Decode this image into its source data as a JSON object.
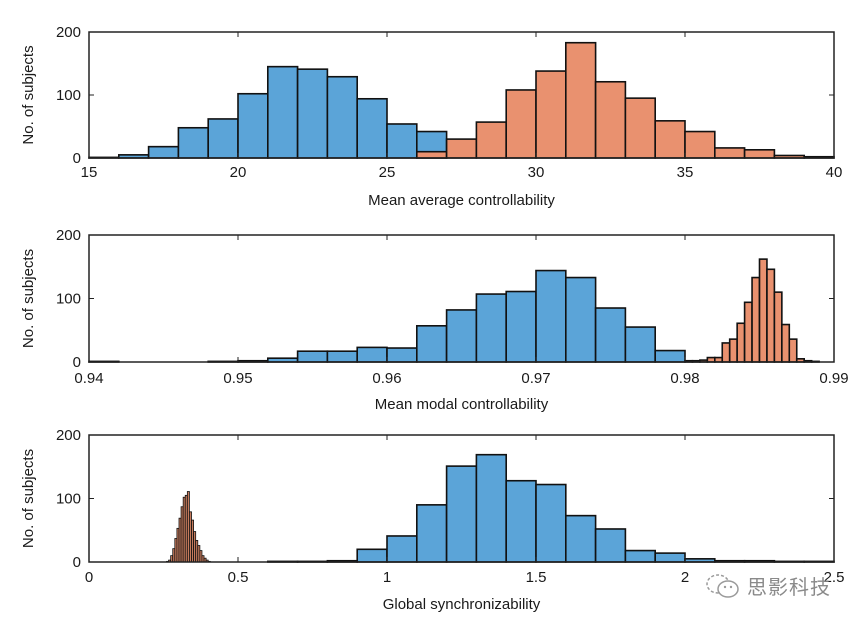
{
  "colors": {
    "blue": "#5BA4D8",
    "orange": "#E9916F",
    "orange_dark": "#C57A5C",
    "edge": "#111111",
    "axis": "#222222"
  },
  "watermark": {
    "text": "思影科技",
    "icon": "wechat-icon"
  },
  "chart_data": [
    {
      "type": "bar",
      "title": "",
      "xlabel": "Mean average controllability",
      "ylabel": "No. of subjects",
      "xlim": [
        15,
        40
      ],
      "ylim": [
        0,
        200
      ],
      "xticks": [
        15,
        20,
        25,
        30,
        35,
        40
      ],
      "xtick_labels": [
        "15",
        "20",
        "25",
        "30",
        "35",
        "40"
      ],
      "yticks": [
        0,
        100,
        200
      ],
      "ytick_labels": [
        "0",
        "100",
        "200"
      ],
      "grid": false,
      "series": [
        {
          "name": "blue",
          "color_key": "blue",
          "bin_start": 15,
          "bin_width": 1,
          "values": [
            1,
            5,
            18,
            48,
            62,
            102,
            145,
            141,
            129,
            94,
            54,
            42
          ]
        },
        {
          "name": "orange",
          "color_key": "orange",
          "bin_start": 26,
          "bin_width": 1,
          "values": [
            10,
            30,
            57,
            108,
            138,
            183,
            121,
            95,
            59,
            42,
            16,
            13,
            4,
            2
          ]
        }
      ]
    },
    {
      "type": "bar",
      "title": "",
      "xlabel": "Mean modal controllability",
      "ylabel": "No. of subjects",
      "xlim": [
        0.94,
        0.99
      ],
      "ylim": [
        0,
        200
      ],
      "xticks": [
        0.94,
        0.95,
        0.96,
        0.97,
        0.98,
        0.99
      ],
      "xtick_labels": [
        "0.94",
        "0.95",
        "0.96",
        "0.97",
        "0.98",
        "0.99"
      ],
      "yticks": [
        0,
        100,
        200
      ],
      "ytick_labels": [
        "0",
        "100",
        "200"
      ],
      "grid": false,
      "series": [
        {
          "name": "blue",
          "color_key": "blue",
          "bin_start": 0.94,
          "bin_width": 0.002,
          "values": [
            1,
            0,
            0,
            0,
            1,
            2,
            6,
            17,
            17,
            23,
            22,
            57,
            82,
            107,
            111,
            144,
            133,
            85,
            55,
            18
          ]
        },
        {
          "name": "orange",
          "color_key": "orange",
          "bin_start": 0.98,
          "bin_width": 0.0005,
          "values": [
            2,
            2,
            3,
            7,
            7,
            30,
            36,
            61,
            94,
            133,
            162,
            146,
            110,
            59,
            36,
            5,
            2,
            1,
            0
          ]
        }
      ]
    },
    {
      "type": "bar",
      "title": "",
      "xlabel": "Global synchronizability",
      "ylabel": "No. of subjects",
      "xlim": [
        0,
        2.5
      ],
      "ylim": [
        0,
        200
      ],
      "xticks": [
        0,
        0.5,
        1,
        1.5,
        2,
        2.5
      ],
      "xtick_labels": [
        "0",
        "0.5",
        "1",
        "1.5",
        "2",
        "2.5"
      ],
      "yticks": [
        0,
        100,
        200
      ],
      "ytick_labels": [
        "0",
        "100",
        "200"
      ],
      "grid": false,
      "series": [
        {
          "name": "blue",
          "color_key": "blue",
          "bin_start": 0.5,
          "bin_width": 0.1,
          "values": [
            0,
            1,
            1,
            2,
            20,
            41,
            90,
            151,
            169,
            128,
            122,
            73,
            52,
            18,
            14,
            5,
            2,
            2,
            1,
            1
          ]
        },
        {
          "name": "orange",
          "color_key": "orange_dark",
          "bin_start": 0.26,
          "bin_width": 0.007,
          "values": [
            1,
            3,
            10,
            21,
            37,
            53,
            69,
            87,
            102,
            105,
            111,
            79,
            66,
            48,
            34,
            26,
            18,
            10,
            6,
            3,
            1
          ]
        }
      ]
    }
  ]
}
